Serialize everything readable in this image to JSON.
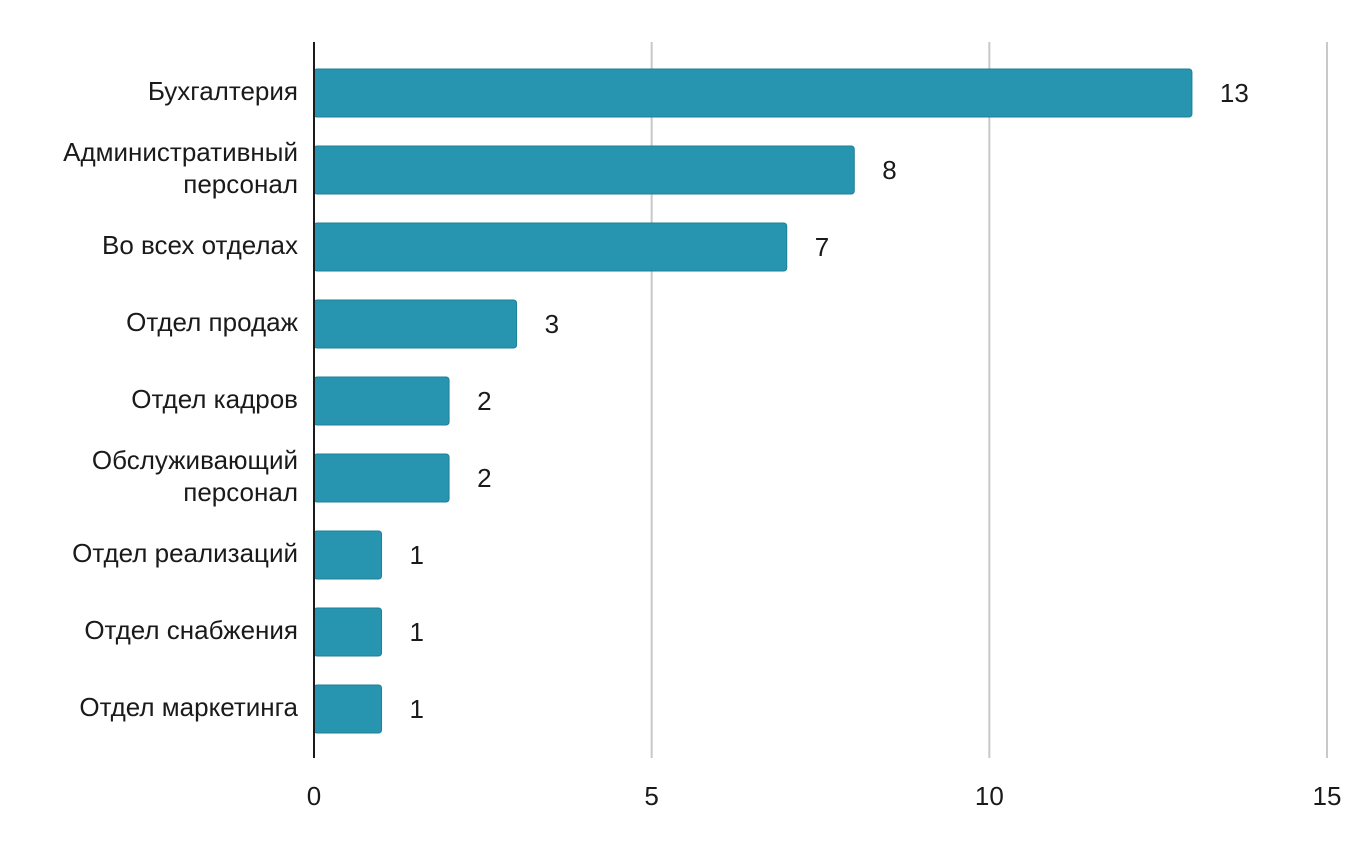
{
  "chart_data": {
    "type": "bar",
    "orientation": "horizontal",
    "categories": [
      [
        "Бухгалтерия"
      ],
      [
        "Административный",
        "персонал"
      ],
      [
        "Во всех отделах"
      ],
      [
        "Отдел продаж"
      ],
      [
        "Отдел кадров"
      ],
      [
        "Обслуживающий",
        "персонал"
      ],
      [
        "Отдел реализаций"
      ],
      [
        "Отдел снабжения"
      ],
      [
        "Отдел маркетинга"
      ]
    ],
    "values": [
      13,
      8,
      7,
      3,
      2,
      2,
      1,
      1,
      1
    ],
    "value_labels": [
      "13",
      "8",
      "7",
      "3",
      "2",
      "2",
      "1",
      "1",
      "1"
    ],
    "xlim": [
      0,
      15
    ],
    "xticks": [
      0,
      5,
      10,
      15
    ],
    "xtick_labels": [
      "0",
      "5",
      "10",
      "15"
    ],
    "grid": true,
    "legend": "none",
    "title": "",
    "xlabel": "",
    "ylabel": ""
  },
  "colors": {
    "bar": "#2794B0",
    "bar_stroke": "#1F7F98",
    "grid": "#C8C8C8",
    "axis": "#1a1a1a",
    "text": "#1a1a1a"
  }
}
